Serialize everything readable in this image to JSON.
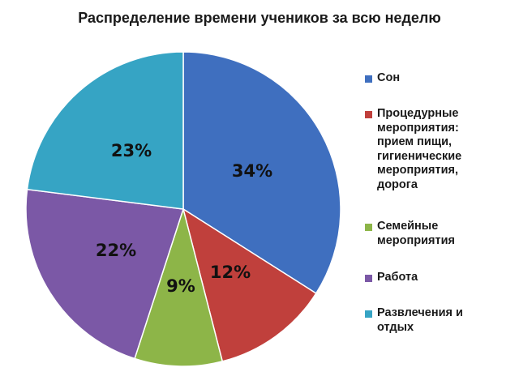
{
  "chart_data": {
    "type": "pie",
    "title": "Распределение времени учеников за всю неделю",
    "slices": [
      {
        "name": "Сон",
        "value": 34,
        "label": "34%",
        "color": "#3f6fbf"
      },
      {
        "name": "Процедурные мероприятия: прием пищи, гигиенические мероприятия, дорога",
        "value": 12,
        "label": "12%",
        "color": "#c0403c"
      },
      {
        "name": "Семейные мероприятия",
        "value": 9,
        "label": "9%",
        "color": "#8db548"
      },
      {
        "name": "Работа",
        "value": 22,
        "label": "22%",
        "color": "#7b58a6"
      },
      {
        "name": "Развлечения и отдых",
        "value": 23,
        "label": "23%",
        "color": "#36a4c4"
      }
    ],
    "legend_position": "right"
  },
  "legend": {
    "items": [
      {
        "lines": [
          "Сон"
        ]
      },
      {
        "lines": [
          "Процедурные",
          "мероприятия:",
          "прием пищи,",
          "гигиенические",
          "мероприятия,",
          "дорога"
        ]
      },
      {
        "lines": [
          "Семейные",
          "мероприятия"
        ]
      },
      {
        "lines": [
          "Работа"
        ]
      },
      {
        "lines": [
          "Развлечения и",
          "отдых"
        ]
      }
    ]
  }
}
